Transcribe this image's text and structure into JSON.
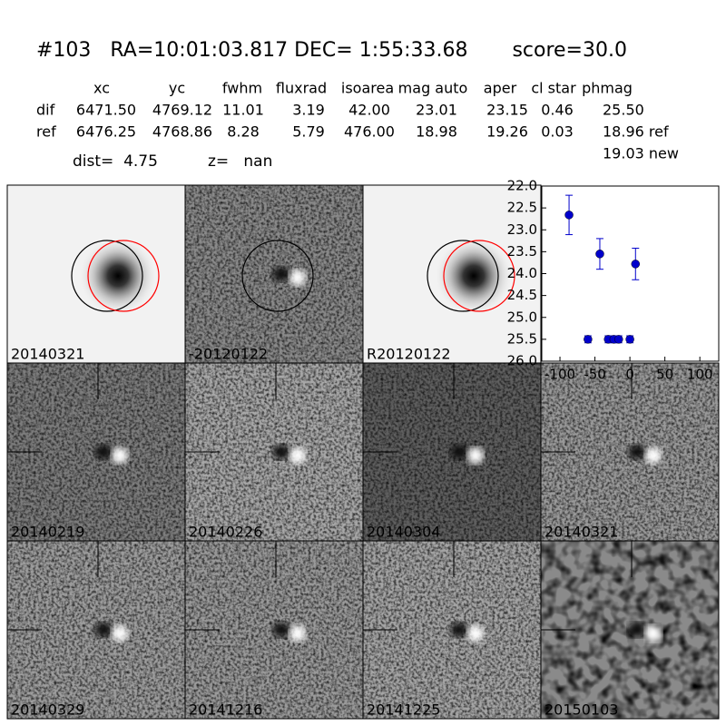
{
  "header": {
    "title": "#103   RA=10:01:03.817 DEC= 1:55:33.68       score=30.0",
    "dist": "dist=  4.75",
    "z": "z=   nan"
  },
  "table": {
    "columns": [
      "xc",
      "yc",
      "fwhm",
      "fluxrad",
      "isoarea",
      "mag auto",
      "aper",
      "cl star",
      "phmag"
    ],
    "rows": [
      [
        "dif",
        "6471.50",
        "4769.12",
        "11.01",
        "3.19",
        "42.00",
        "23.01",
        "23.15",
        "0.46",
        "25.50"
      ],
      [
        "ref",
        "6476.25",
        "4768.86",
        "8.28",
        "5.79",
        "476.00",
        "18.98",
        "19.26",
        "0.03",
        "18.96 ref"
      ]
    ],
    "extra": "19.03 new"
  },
  "panels": [
    {
      "label": "20140321",
      "color": "#000000"
    },
    {
      "label": "-20120122",
      "color": "#000000"
    },
    {
      "label": "R20120122",
      "color": "#000000"
    },
    {
      "label": "20140219",
      "color": "#000000"
    },
    {
      "label": "20140226",
      "color": "#000000"
    },
    {
      "label": "20140304",
      "color": "#000000"
    },
    {
      "label": "20140321",
      "color": "#ff0000"
    },
    {
      "label": "20140329",
      "color": "#000000"
    },
    {
      "label": "20141216",
      "color": "#000000"
    },
    {
      "label": "20141225",
      "color": "#000000"
    },
    {
      "label": "20150103",
      "color": "#000000"
    }
  ],
  "chart_data": {
    "type": "scatter",
    "x": [
      -87,
      -43,
      -60,
      -31,
      -23,
      -16,
      0,
      8
    ],
    "values": [
      22.66,
      23.55,
      25.5,
      25.5,
      25.5,
      25.5,
      25.5,
      23.78
    ],
    "errors": [
      0.45,
      0.35,
      0.08,
      0.08,
      0.08,
      0.08,
      0.08,
      0.36
    ],
    "color": "#0000cc",
    "xlim": [
      -126,
      127
    ],
    "xticks": [
      -100,
      -50,
      0,
      50,
      100
    ],
    "ylim": [
      26.0,
      22.0
    ],
    "yticks": [
      {
        "value": 22,
        "label": "22.0"
      },
      {
        "value": 22.5,
        "label": "22.5"
      },
      {
        "value": 23,
        "label": "23.0"
      },
      {
        "value": 23.5,
        "label": "23.5"
      },
      {
        "value": 24,
        "label": "24.0"
      },
      {
        "value": 24.5,
        "label": "24.5"
      },
      {
        "value": 25,
        "label": "25.0"
      },
      {
        "value": 25.5,
        "label": "25.5"
      },
      {
        "value": 26,
        "label": "26.0"
      }
    ]
  }
}
